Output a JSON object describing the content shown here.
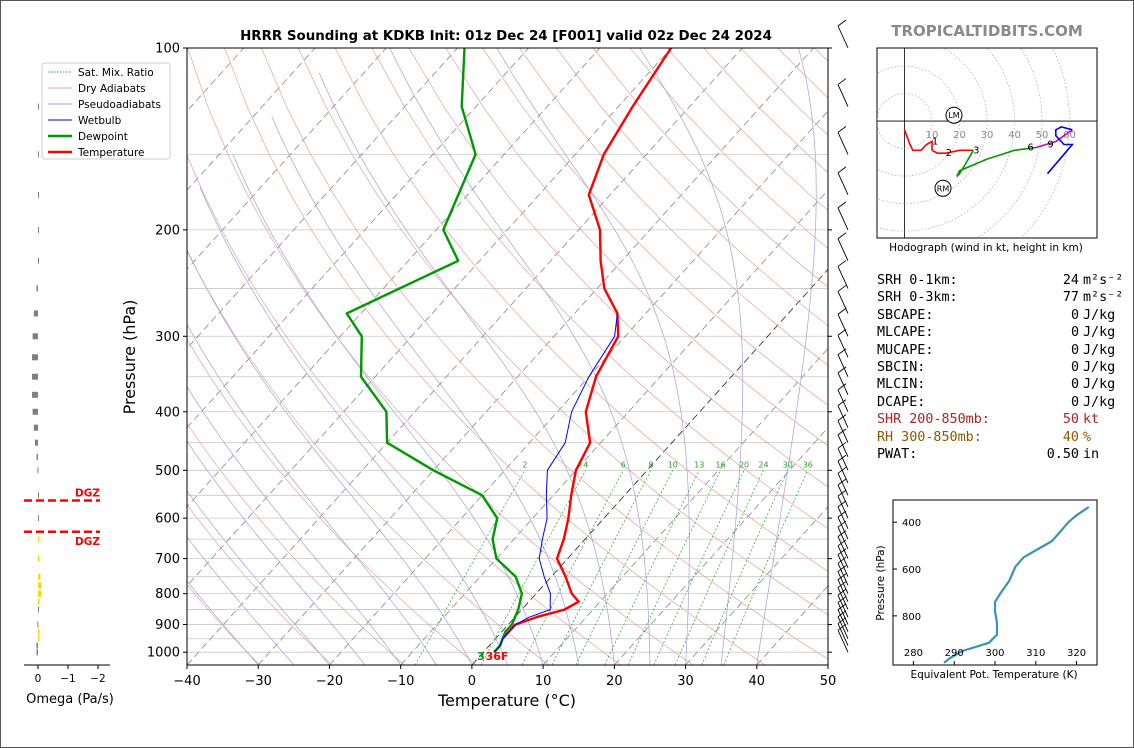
{
  "title": "HRRR Sounding at KDKB Init: 01z Dec 24 [F001] valid 02z Dec 24 2024",
  "watermark": "TROPICALTIDBITS.COM",
  "skewt": {
    "xlabel": "Temperature (°C)",
    "ylabel": "Pressure (hPa)",
    "x_ticks": [
      "−40",
      "−30",
      "−20",
      "−10",
      "0",
      "10",
      "20",
      "30",
      "40",
      "50"
    ],
    "y_ticks": [
      "100",
      "200",
      "300",
      "400",
      "500",
      "600",
      "700",
      "800",
      "900",
      "1000"
    ],
    "surface_dewpoint_label": "3",
    "surface_temp_label": "36F",
    "mixing_ratio_labels": [
      "2",
      "4",
      "6",
      "8",
      "10",
      "13",
      "16",
      "20",
      "24",
      "30",
      "36"
    ],
    "legend": [
      {
        "label": "Sat. Mix. Ratio",
        "color": "#2aa02a",
        "style": "dotted"
      },
      {
        "label": "Dry Adiabats",
        "color": "#e8a0a0",
        "style": "solid"
      },
      {
        "label": "Pseudoadiabats",
        "color": "#a0a0e0",
        "style": "solid"
      },
      {
        "label": "Wetbulb",
        "color": "#0000ff",
        "style": "solid"
      },
      {
        "label": "Dewpoint",
        "color": "#009900",
        "style": "solid"
      },
      {
        "label": "Temperature",
        "color": "#ff0000",
        "style": "solid"
      }
    ]
  },
  "omega": {
    "xlabel": "Omega (Pa/s)",
    "ticks": [
      "0",
      "−1",
      "−2"
    ],
    "dgz_label": "DGZ"
  },
  "hodograph": {
    "caption": "Hodograph (wind in kt, height in km)",
    "ring_labels": [
      "10",
      "20",
      "30",
      "40",
      "50",
      "60"
    ],
    "markers": [
      "LM",
      "RM"
    ],
    "height_labels": [
      "1",
      "2",
      "3",
      "6",
      "9"
    ]
  },
  "stats": [
    {
      "label": "SRH 0-1km:",
      "value": "24",
      "unit": "m²s⁻²",
      "color": "#000"
    },
    {
      "label": "SRH 0-3km:",
      "value": "77",
      "unit": "m²s⁻²",
      "color": "#000"
    },
    {
      "label": "SBCAPE:",
      "value": "0",
      "unit": "J/kg",
      "color": "#000"
    },
    {
      "label": "MLCAPE:",
      "value": "0",
      "unit": "J/kg",
      "color": "#000"
    },
    {
      "label": "MUCAPE:",
      "value": "0",
      "unit": "J/kg",
      "color": "#000"
    },
    {
      "label": "SBCIN:",
      "value": "0",
      "unit": "J/kg",
      "color": "#000"
    },
    {
      "label": "MLCIN:",
      "value": "0",
      "unit": "J/kg",
      "color": "#000"
    },
    {
      "label": "DCAPE:",
      "value": "0",
      "unit": "J/kg",
      "color": "#000"
    },
    {
      "label": "SHR 200-850mb:",
      "value": "50",
      "unit": "kt",
      "color": "#b22222"
    },
    {
      "label": "RH 300-850mb:",
      "value": "40",
      "unit": "%",
      "color": "#8b5a00"
    },
    {
      "label": "PWAT:",
      "value": "0.50",
      "unit": "in",
      "color": "#000"
    }
  ],
  "theta_e": {
    "xlabel": "Equivalent Pot. Temperature (K)",
    "ylabel": "Pressure (hPa)",
    "x_ticks": [
      "280",
      "290",
      "300",
      "310",
      "320"
    ],
    "y_ticks": [
      "400",
      "600",
      "800"
    ]
  },
  "chart_data": [
    {
      "type": "line",
      "title": "HRRR Sounding at KDKB Init: 01z Dec 24 [F001] valid 02z Dec 24 2024",
      "xlabel": "Temperature (°C)",
      "ylabel": "Pressure (hPa)",
      "xlim": [
        -40,
        50
      ],
      "ylim": [
        1050,
        100
      ],
      "log_y": true,
      "grid": true,
      "legend_position": "upper-left",
      "series": [
        {
          "name": "Temperature",
          "color": "#ff0000",
          "points": [
            [
              1.5,
              1000
            ],
            [
              1.5,
              975
            ],
            [
              1.0,
              950
            ],
            [
              1.0,
              925
            ],
            [
              1.0,
              900
            ],
            [
              3,
              875
            ],
            [
              6,
              850
            ],
            [
              7,
              825
            ],
            [
              5,
              800
            ],
            [
              2,
              750
            ],
            [
              -1.5,
              700
            ],
            [
              -3,
              650
            ],
            [
              -5,
              600
            ],
            [
              -7.5,
              550
            ],
            [
              -10,
              500
            ],
            [
              -11.5,
              450
            ],
            [
              -16,
              400
            ],
            [
              -19,
              350
            ],
            [
              -21,
              300
            ],
            [
              -24,
              275
            ],
            [
              -29,
              250
            ],
            [
              -33,
              225
            ],
            [
              -37,
              200
            ],
            [
              -43,
              175
            ],
            [
              -46,
              150
            ],
            [
              -48,
              125
            ],
            [
              -50,
              100
            ]
          ]
        },
        {
          "name": "Dewpoint",
          "color": "#009900",
          "points": [
            [
              1.5,
              1000
            ],
            [
              1.5,
              975
            ],
            [
              1.0,
              950
            ],
            [
              0.5,
              925
            ],
            [
              0.5,
              900
            ],
            [
              -0.5,
              850
            ],
            [
              -2,
              800
            ],
            [
              -5,
              750
            ],
            [
              -10,
              700
            ],
            [
              -13,
              650
            ],
            [
              -15,
              600
            ],
            [
              -20,
              550
            ],
            [
              -30,
              500
            ],
            [
              -40,
              450
            ],
            [
              -44,
              400
            ],
            [
              -52,
              350
            ],
            [
              -57,
              300
            ],
            [
              -62,
              275
            ],
            [
              -53,
              225
            ],
            [
              -59,
              200
            ],
            [
              -64,
              150
            ],
            [
              -72,
              125
            ],
            [
              -79,
              100
            ]
          ]
        },
        {
          "name": "Wetbulb",
          "color": "#0000ff",
          "points": [
            [
              1.5,
              1000
            ],
            [
              1.5,
              975
            ],
            [
              1.0,
              950
            ],
            [
              1.0,
              925
            ],
            [
              1.0,
              900
            ],
            [
              2,
              875
            ],
            [
              4,
              850
            ],
            [
              3,
              825
            ],
            [
              2,
              800
            ],
            [
              -1,
              750
            ],
            [
              -4,
              700
            ],
            [
              -6,
              650
            ],
            [
              -8,
              600
            ],
            [
              -11,
              550
            ],
            [
              -14,
              500
            ],
            [
              -15,
              450
            ],
            [
              -18,
              400
            ],
            [
              -20,
              350
            ],
            [
              -21.5,
              300
            ],
            [
              -24,
              275
            ]
          ]
        }
      ],
      "omega_pa_s": [
        [
          1000,
          0.05
        ],
        [
          975,
          0.05
        ],
        [
          950,
          -0.05
        ],
        [
          925,
          -0.05
        ],
        [
          900,
          0.02
        ],
        [
          850,
          0.0
        ],
        [
          825,
          -0.05
        ],
        [
          800,
          -0.1
        ],
        [
          775,
          -0.12
        ],
        [
          750,
          -0.08
        ],
        [
          700,
          -0.05
        ],
        [
          650,
          -0.03
        ],
        [
          600,
          0.0
        ],
        [
          550,
          0.0
        ],
        [
          500,
          0.02
        ],
        [
          475,
          0.05
        ],
        [
          450,
          0.1
        ],
        [
          425,
          0.14
        ],
        [
          400,
          0.18
        ],
        [
          375,
          0.2
        ],
        [
          350,
          0.2
        ],
        [
          325,
          0.2
        ],
        [
          300,
          0.18
        ],
        [
          275,
          0.14
        ],
        [
          250,
          0.05
        ],
        [
          225,
          0.0
        ],
        [
          200,
          0.0
        ],
        [
          175,
          0.0
        ],
        [
          150,
          0.0
        ],
        [
          125,
          0.0
        ]
      ],
      "dgz_pressures_hpa": [
        561,
        632
      ]
    },
    {
      "type": "line",
      "title": "Hodograph (wind in kt, height in km)",
      "xlim": [
        -10,
        70
      ],
      "ylim": [
        -40,
        25
      ],
      "height_markers_km": [
        1,
        2,
        3,
        6,
        9
      ],
      "series": [
        {
          "name": "0-1 km",
          "color": "#ff0000",
          "points": [
            [
              0,
              -3
            ],
            [
              2,
              -8
            ],
            [
              3,
              -10
            ],
            [
              6,
              -10
            ],
            [
              8,
              -8
            ],
            [
              10,
              -7
            ],
            [
              10,
              -10
            ]
          ]
        },
        {
          "name": "1-3 km",
          "color": "#ff0000",
          "points": [
            [
              10,
              -10
            ],
            [
              12,
              -11
            ],
            [
              15,
              -11
            ],
            [
              20,
              -10
            ],
            [
              25,
              -10
            ]
          ]
        },
        {
          "name": "3-6 km",
          "color": "#009900",
          "points": [
            [
              25,
              -10
            ],
            [
              22,
              -15
            ],
            [
              20,
              -18
            ],
            [
              19,
              -19
            ],
            [
              20,
              -17
            ],
            [
              30,
              -13
            ],
            [
              40,
              -10
            ],
            [
              48,
              -9
            ]
          ]
        },
        {
          "name": "6-9 km",
          "color": "#cc00cc",
          "points": [
            [
              48,
              -9
            ],
            [
              55,
              -7
            ],
            [
              61,
              -3
            ]
          ]
        },
        {
          "name": "9+ km",
          "color": "#0000ff",
          "points": [
            [
              61,
              -3
            ],
            [
              57,
              -2
            ],
            [
              55,
              -3
            ],
            [
              55,
              -5
            ],
            [
              58,
              -8
            ],
            [
              61,
              -8
            ],
            [
              52,
              -18
            ]
          ]
        }
      ],
      "storm_motion": {
        "LM": [
          18,
          2
        ],
        "RM": [
          14,
          -23
        ]
      }
    },
    {
      "type": "line",
      "xlabel": "Equivalent Pot. Temperature (K)",
      "ylabel": "Pressure (hPa)",
      "xlim": [
        275,
        325
      ],
      "ylim": [
        1010,
        305
      ],
      "series": [
        {
          "name": "θe",
          "color": "#3a93b0",
          "points": [
            [
              287.5,
              1000
            ],
            [
              289,
              980
            ],
            [
              292,
              950
            ],
            [
              298.5,
              915
            ],
            [
              300.5,
              880
            ],
            [
              300.5,
              830
            ],
            [
              300,
              780
            ],
            [
              300,
              740
            ],
            [
              301.5,
              700
            ],
            [
              303.5,
              650
            ],
            [
              305,
              590
            ],
            [
              307,
              550
            ],
            [
              311,
              510
            ],
            [
              314,
              480
            ],
            [
              316,
              440
            ],
            [
              318,
              400
            ],
            [
              320,
              370
            ],
            [
              323,
              335
            ]
          ]
        }
      ]
    }
  ]
}
